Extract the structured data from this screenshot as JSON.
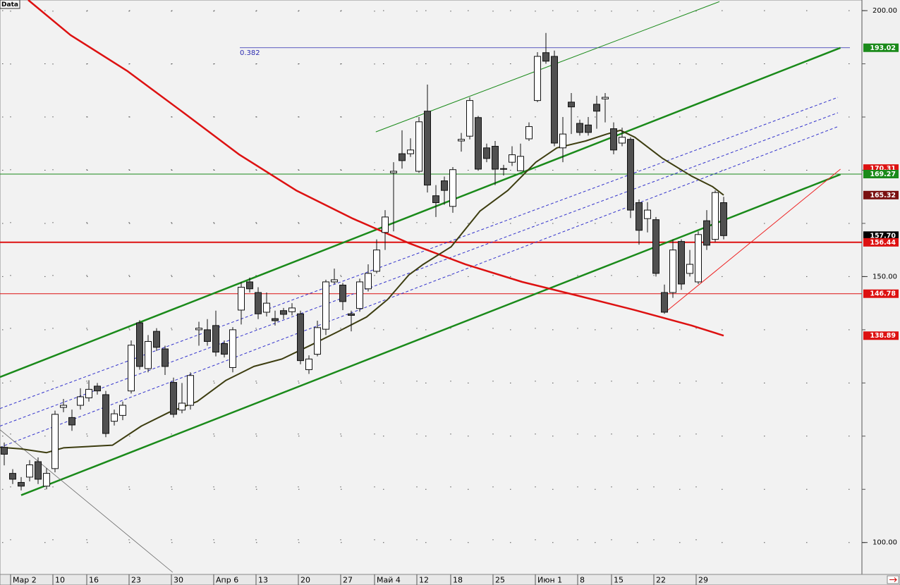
{
  "chart_data": {
    "type": "candlestick",
    "corner_label": "Data",
    "annotation": "0.382",
    "categories": [
      null,
      "Мар 2",
      null,
      null,
      null,
      null,
      "10",
      null,
      null,
      null,
      "16",
      null,
      null,
      null,
      null,
      "23",
      null,
      null,
      null,
      null,
      "30",
      null,
      null,
      null,
      null,
      "Апр 6",
      null,
      null,
      null,
      null,
      "13",
      null,
      null,
      null,
      null,
      "20",
      null,
      null,
      null,
      null,
      "27",
      null,
      null,
      null,
      "Май 4",
      null,
      null,
      null,
      null,
      "12",
      null,
      null,
      null,
      "18",
      null,
      null,
      null,
      null,
      "25",
      null,
      null,
      null,
      null,
      "Июн 1",
      null,
      null,
      null,
      null,
      "8",
      null,
      null,
      null,
      "15",
      null,
      null,
      null,
      null,
      "22",
      null,
      null,
      null,
      null,
      "29",
      null,
      null,
      null
    ],
    "candles": [
      [
        117.9,
        118.8,
        114.5,
        116.6
      ],
      [
        113.0,
        113.8,
        111.0,
        111.9
      ],
      [
        111.3,
        112.3,
        109.8,
        110.6
      ],
      [
        112.3,
        115.5,
        111.5,
        114.6
      ],
      [
        115.2,
        116.0,
        111.0,
        111.9
      ],
      [
        110.6,
        114.0,
        110.0,
        113.0
      ],
      [
        113.9,
        124.8,
        113.2,
        124.1
      ],
      [
        125.4,
        127.0,
        124.5,
        125.8
      ],
      [
        123.5,
        125.0,
        121.0,
        122.1
      ],
      [
        125.8,
        129.0,
        125.0,
        127.4
      ],
      [
        127.2,
        130.5,
        126.5,
        128.8
      ],
      [
        129.4,
        130.0,
        127.8,
        128.5
      ],
      [
        127.8,
        128.5,
        119.8,
        120.5
      ],
      [
        122.8,
        125.0,
        122.0,
        124.2
      ],
      [
        123.9,
        126.5,
        123.0,
        125.8
      ],
      [
        128.5,
        138.0,
        128.0,
        137.1
      ],
      [
        141.3,
        141.8,
        132.5,
        133.1
      ],
      [
        132.7,
        139.0,
        132.0,
        137.8
      ],
      [
        139.7,
        140.3,
        136.0,
        136.7
      ],
      [
        136.4,
        137.0,
        131.5,
        133.1
      ],
      [
        130.1,
        131.0,
        123.5,
        124.1
      ],
      [
        124.9,
        130.0,
        124.3,
        126.2
      ],
      [
        125.8,
        132.0,
        125.0,
        131.4
      ],
      [
        140.0,
        141.5,
        137.0,
        140.3
      ],
      [
        140.0,
        142.0,
        137.0,
        137.8
      ],
      [
        140.8,
        143.6,
        135.0,
        135.8
      ],
      [
        137.4,
        138.0,
        134.8,
        135.4
      ],
      [
        132.9,
        140.5,
        132.0,
        140.0
      ],
      [
        143.7,
        149.0,
        141.0,
        148.0
      ],
      [
        149.0,
        149.8,
        147.0,
        147.7
      ],
      [
        147.0,
        148.0,
        142.0,
        143.0
      ],
      [
        143.3,
        147.0,
        142.5,
        145.0
      ],
      [
        142.1,
        143.6,
        140.8,
        141.7
      ],
      [
        143.6,
        144.1,
        142.0,
        142.9
      ],
      [
        143.4,
        145.0,
        142.7,
        144.1
      ],
      [
        143.0,
        143.6,
        133.5,
        134.2
      ],
      [
        132.5,
        135.2,
        131.7,
        134.5
      ],
      [
        135.4,
        141.7,
        135.0,
        140.4
      ],
      [
        140.1,
        149.4,
        139.0,
        149.0
      ],
      [
        149.0,
        151.5,
        148.6,
        149.4
      ],
      [
        148.4,
        148.8,
        143.7,
        145.3
      ],
      [
        143.0,
        143.6,
        139.7,
        142.7
      ],
      [
        144.0,
        149.6,
        143.4,
        149.0
      ],
      [
        147.7,
        152.3,
        147.2,
        150.6
      ],
      [
        151.0,
        157.0,
        150.6,
        155.0
      ],
      [
        158.3,
        162.5,
        155.0,
        161.2
      ],
      [
        169.5,
        171.5,
        158.5,
        169.8
      ],
      [
        173.1,
        177.5,
        170.3,
        171.8
      ],
      [
        173.1,
        176.0,
        172.5,
        173.8
      ],
      [
        169.8,
        180.0,
        169.5,
        179.1
      ],
      [
        181.1,
        186.1,
        165.8,
        167.2
      ],
      [
        165.2,
        167.2,
        161.2,
        163.9
      ],
      [
        168.0,
        168.8,
        163.5,
        166.2
      ],
      [
        163.2,
        170.6,
        162.0,
        170.1
      ],
      [
        175.5,
        177.0,
        173.5,
        175.8
      ],
      [
        176.4,
        183.7,
        175.8,
        183.1
      ],
      [
        179.9,
        180.2,
        169.9,
        170.2
      ],
      [
        174.2,
        175.0,
        171.5,
        172.2
      ],
      [
        174.5,
        175.5,
        167.2,
        170.2
      ],
      [
        170.2,
        171.0,
        169.0,
        170.3
      ],
      [
        171.5,
        174.5,
        170.8,
        172.9
      ],
      [
        169.9,
        175.0,
        169.8,
        172.6
      ],
      [
        175.9,
        179.0,
        175.5,
        178.2
      ],
      [
        183.1,
        192.2,
        182.8,
        191.4
      ],
      [
        192.1,
        195.8,
        190.0,
        190.5
      ],
      [
        191.4,
        192.5,
        174.5,
        175.1
      ],
      [
        174.2,
        180.0,
        171.5,
        176.8
      ],
      [
        182.8,
        184.5,
        176.8,
        181.9
      ],
      [
        178.8,
        179.5,
        176.5,
        177.1
      ],
      [
        178.5,
        180.0,
        176.5,
        177.1
      ],
      [
        182.4,
        184.0,
        177.8,
        181.1
      ],
      [
        183.4,
        184.5,
        179.0,
        183.7
      ],
      [
        177.8,
        179.0,
        173.0,
        173.8
      ],
      [
        175.1,
        178.0,
        174.5,
        176.2
      ],
      [
        175.8,
        176.2,
        161.0,
        162.5
      ],
      [
        163.9,
        164.5,
        156.0,
        158.7
      ],
      [
        160.9,
        164.0,
        158.3,
        162.5
      ],
      [
        160.7,
        161.2,
        150.0,
        150.6
      ],
      [
        147.0,
        148.5,
        143.0,
        143.3
      ],
      [
        147.0,
        157.0,
        146.0,
        155.0
      ],
      [
        156.6,
        157.0,
        147.5,
        148.6
      ],
      [
        150.6,
        155.0,
        150.0,
        152.3
      ],
      [
        149.0,
        158.5,
        148.6,
        157.9
      ],
      [
        160.5,
        162.5,
        155.0,
        155.9
      ],
      [
        157.0,
        166.2,
        156.5,
        165.8
      ],
      [
        163.9,
        165.0,
        157.0,
        157.7
      ]
    ],
    "ylim": [
      94,
      202
    ],
    "yticks": [
      {
        "value": 200,
        "label": "200.00"
      },
      {
        "value": 150,
        "label": "150.00"
      },
      {
        "value": 100,
        "label": "100.00"
      }
    ],
    "ygrid": [
      100,
      110,
      120,
      130,
      140,
      150,
      160,
      170,
      180,
      190,
      200
    ],
    "price_labels": [
      {
        "value": 193.02,
        "label": "193.02",
        "color": "#1a8a1a",
        "line": "fibo",
        "line_color": "#2b2bb0"
      },
      {
        "value": 170.31,
        "label": "170.31",
        "color": "#dd1111"
      },
      {
        "value": 169.27,
        "label": "169.27",
        "color": "#1a8a1a",
        "line": "full",
        "line_color": "#1a8a1a"
      },
      {
        "value": 165.32,
        "label": "165.32",
        "color": "#7a1010"
      },
      {
        "value": 157.7,
        "label": "157.70",
        "color": "#000000"
      },
      {
        "value": 156.44,
        "label": "156.44",
        "color": "#dd1111",
        "line": "thick",
        "line_color": "#dd1111"
      },
      {
        "value": 146.78,
        "label": "146.78",
        "color": "#dd1111",
        "line": "full",
        "line_color": "#dd1111"
      },
      {
        "value": 138.89,
        "label": "138.89",
        "color": "#dd1111"
      }
    ],
    "lines": [
      {
        "color": "#1a8a1a",
        "width": 2.5,
        "x": [
          -0.5,
          98.8
        ],
        "values": [
          131.1,
          193.02
        ]
      },
      {
        "color": "#1a8a1a",
        "width": 2.5,
        "x": [
          2,
          98.8
        ],
        "values": [
          108.9,
          169.2
        ]
      },
      {
        "color": "#1a8a1a",
        "width": 1,
        "x": [
          43.9,
          84.5
        ],
        "values": [
          177.2,
          201.7
        ]
      },
      {
        "color": "#3333cc",
        "width": 1,
        "dash": true,
        "x": [
          -0.5,
          98.5
        ],
        "values": [
          125.2,
          183.7
        ]
      },
      {
        "color": "#3333cc",
        "width": 1,
        "dash": true,
        "x": [
          -0.5,
          98.5
        ],
        "values": [
          121.9,
          180.8
        ]
      },
      {
        "color": "#3333cc",
        "width": 1,
        "dash": true,
        "x": [
          -0.5,
          98.5
        ],
        "values": [
          117.9,
          178.2
        ]
      },
      {
        "color": "#ee2222",
        "width": 1,
        "x": [
          78.1,
          98.8
        ],
        "values": [
          143.3,
          170.2
        ]
      },
      {
        "color": "#666666",
        "width": 0.8,
        "x": [
          -0.5,
          19.9
        ],
        "values": [
          121.2,
          94.4
        ]
      },
      {
        "color": "#dd1111",
        "width": 2.5,
        "x": [
          2.83,
          7.83,
          14.5,
          21.2,
          27.8,
          34.5,
          41.2,
          47.8,
          54.5,
          61.2,
          67.8,
          74.5,
          81.2,
          85
        ],
        "values": [
          202.0,
          195.4,
          188.7,
          180.8,
          172.9,
          166.2,
          160.9,
          156.3,
          152.3,
          149.0,
          146.4,
          143.7,
          140.8,
          138.89
        ]
      },
      {
        "color": "#3d3d10",
        "width": 2,
        "x": [
          -0.5,
          2,
          5,
          7,
          12.8,
          16.2,
          19.5,
          22.8,
          26.2,
          29.5,
          32.8,
          36.2,
          39.5,
          42.8,
          45.3,
          47.8,
          49.5,
          52.8,
          56.2,
          59.5,
          62.8,
          65.3,
          68.7,
          71.2,
          72.8,
          74.5,
          77.8,
          81.2,
          83.7,
          85
        ],
        "values": [
          117.9,
          117.6,
          116.9,
          117.8,
          118.3,
          121.9,
          124.5,
          126.5,
          130.5,
          133.1,
          134.5,
          137.1,
          139.7,
          142.4,
          145.7,
          150.3,
          152.3,
          155.6,
          162.3,
          166.2,
          171.5,
          174.2,
          175.5,
          176.8,
          177.5,
          176.2,
          172.2,
          168.9,
          166.9,
          165.32
        ]
      }
    ]
  }
}
